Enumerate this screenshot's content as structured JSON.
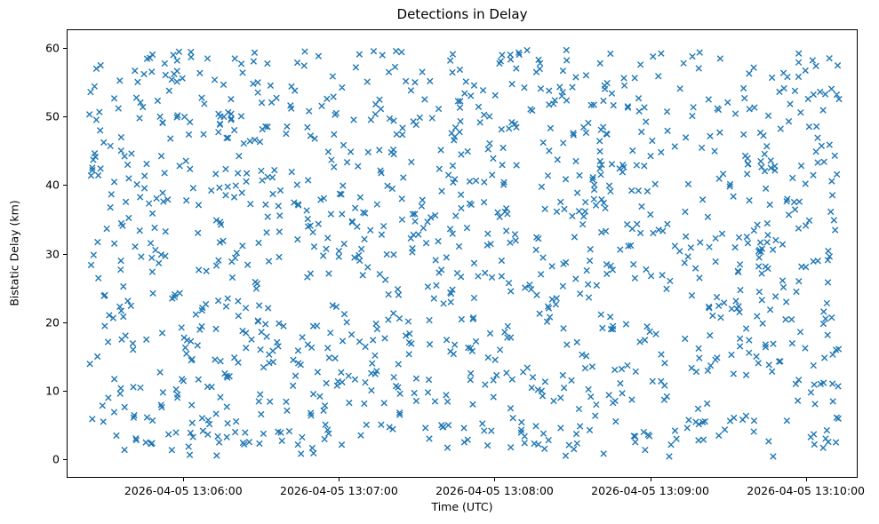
{
  "chart_data": {
    "type": "scatter",
    "title": "Detections in Delay",
    "xlabel": "Time (UTC)",
    "ylabel": "Bistatic Delay (km)",
    "marker": "x",
    "marker_color": "#1f77b4",
    "marker_half_size_px": 3.2,
    "marker_stroke_px": 1.4,
    "n_points": 1250,
    "seed": 42,
    "distribution": "uniform",
    "grid": false,
    "legend": null,
    "x_axis": {
      "units": "seconds from axis start",
      "range_s": [
        0,
        305
      ],
      "data_range_s": [
        8,
        299
      ],
      "tick_s": [
        45,
        105,
        165,
        225,
        285
      ],
      "tick_labels": [
        "2026-04-05 13:06:00",
        "2026-04-05 13:07:00",
        "2026-04-05 13:08:00",
        "2026-04-05 13:09:00",
        "2026-04-05 13:10:00"
      ]
    },
    "y_axis": {
      "lim": [
        -2.7,
        62.7
      ],
      "data_range": [
        0.3,
        59.8
      ],
      "ticks": [
        0,
        10,
        20,
        30,
        40,
        50,
        60
      ],
      "tick_labels": [
        "0",
        "10",
        "20",
        "30",
        "40",
        "50",
        "60"
      ]
    }
  }
}
